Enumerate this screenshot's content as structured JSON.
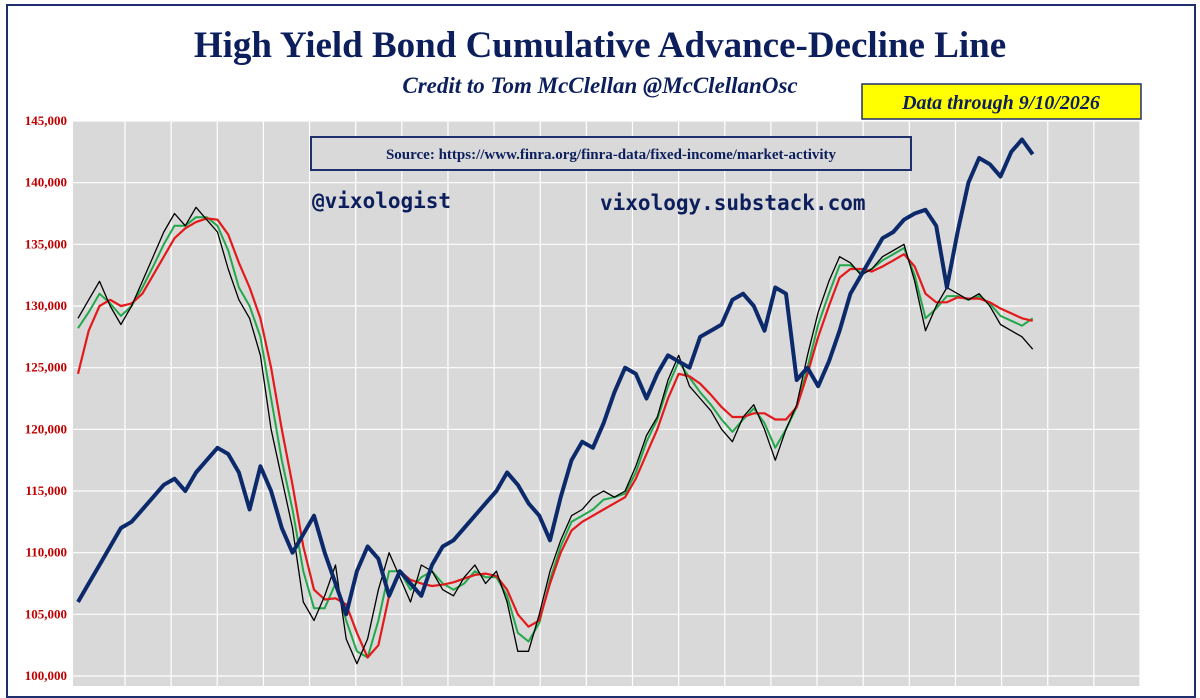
{
  "chart_data": {
    "type": "line",
    "title": "High Yield Bond Cumulative Advance-Decline Line",
    "subtitle": "Credit to Tom McClellan @McClellanOsc",
    "data_through": "Data through 9/10/2026",
    "source": "Source: https://www.finra.org/finra-data/fixed-income/market-activity",
    "handle": "@vixologist",
    "website": "vixology.substack.com",
    "y_ticks": [
      "145,000",
      "140,000",
      "135,000",
      "130,000",
      "125,000",
      "120,000",
      "115,000",
      "110,000",
      "105,000",
      "100,000"
    ],
    "ylim": [
      100000,
      145000
    ],
    "x_count": 100,
    "grid": true,
    "series": [
      {
        "color": "#0c2a6b",
        "width": 4,
        "values": [
          106000,
          107500,
          109000,
          110500,
          112000,
          112500,
          113500,
          114500,
          115500,
          116000,
          115000,
          116500,
          117500,
          118500,
          118000,
          116500,
          113500,
          117000,
          115000,
          112000,
          110000,
          111500,
          113000,
          110000,
          107500,
          105000,
          108500,
          110500,
          109500,
          106500,
          108500,
          107500,
          106500,
          109000,
          110500,
          111000,
          112000,
          113000,
          114000,
          115000,
          116500,
          115500,
          114000,
          113000,
          111000,
          114500,
          117500,
          119000,
          118500,
          120500,
          123000,
          125000,
          124500,
          122500,
          124500,
          126000,
          125500,
          125000,
          127500,
          128000,
          128500,
          130500,
          131000,
          130000,
          128000,
          131500,
          131000,
          124000,
          125000,
          123500,
          125500,
          128000,
          131000,
          132500,
          134000,
          135500,
          136000,
          137000,
          137500,
          137800,
          136500,
          131500,
          136000,
          140000,
          142000,
          141500,
          140500,
          142500,
          143500,
          142300
        ]
      },
      {
        "color": "#000000",
        "width": 1.3,
        "values": [
          129000,
          130500,
          132000,
          130000,
          128500,
          130000,
          132000,
          134000,
          136000,
          137500,
          136500,
          138000,
          137000,
          136000,
          133000,
          130500,
          129000,
          126000,
          120000,
          116000,
          112000,
          106000,
          104500,
          106500,
          109000,
          103000,
          101000,
          103000,
          107000,
          110000,
          108000,
          106000,
          109000,
          108500,
          107000,
          106500,
          108000,
          109000,
          107500,
          108500,
          106000,
          102000,
          102000,
          105000,
          108500,
          111000,
          113000,
          113500,
          114500,
          115000,
          114500,
          115000,
          117000,
          119500,
          121000,
          124000,
          126000,
          123500,
          122500,
          121500,
          120000,
          119000,
          121000,
          122000,
          120000,
          117500,
          120000,
          122000,
          126000,
          129500,
          132000,
          134000,
          133500,
          132500,
          133000,
          134000,
          134500,
          135000,
          132000,
          128000,
          130000,
          131500,
          131000,
          130500,
          131000,
          130000,
          128500,
          128000,
          127500,
          126500
        ]
      },
      {
        "color": "#22a84a",
        "width": 2,
        "values": [
          128200,
          129500,
          131000,
          130200,
          129200,
          130000,
          131500,
          133200,
          135000,
          136500,
          136500,
          137200,
          137200,
          136500,
          134500,
          131500,
          130000,
          127500,
          122500,
          117500,
          113500,
          108500,
          105500,
          105500,
          107500,
          104500,
          102000,
          101500,
          104500,
          108500,
          108500,
          107000,
          108000,
          108500,
          107500,
          107000,
          107500,
          108500,
          108000,
          108000,
          106500,
          103500,
          102800,
          104300,
          107800,
          110500,
          112500,
          113000,
          113500,
          114300,
          114500,
          114800,
          116500,
          119000,
          120800,
          123500,
          125500,
          124200,
          123000,
          122000,
          120800,
          119800,
          120800,
          121700,
          120500,
          118500,
          120000,
          121800,
          125000,
          128500,
          131000,
          133300,
          133300,
          132700,
          133000,
          133700,
          134200,
          134700,
          132500,
          129000,
          129800,
          130800,
          130800,
          130500,
          130800,
          130200,
          129200,
          128800,
          128400,
          129000
        ]
      },
      {
        "color": "#e31a1c",
        "width": 2.2,
        "values": [
          124500,
          128000,
          130000,
          130500,
          130000,
          130200,
          131000,
          132500,
          134000,
          135500,
          136300,
          136800,
          137100,
          137000,
          135800,
          133500,
          131500,
          129000,
          125000,
          120000,
          115500,
          110500,
          107000,
          106200,
          106300,
          105800,
          103500,
          101500,
          102500,
          106500,
          108500,
          107800,
          107500,
          107300,
          107400,
          107600,
          107900,
          108200,
          108300,
          108100,
          107000,
          105000,
          104000,
          104500,
          107500,
          110000,
          111800,
          112500,
          113000,
          113500,
          114000,
          114500,
          116000,
          118000,
          120000,
          122500,
          124500,
          124300,
          123700,
          122800,
          121800,
          121000,
          121000,
          121300,
          121300,
          120800,
          120800,
          121800,
          124500,
          127500,
          130000,
          132300,
          133000,
          133000,
          132800,
          133200,
          133700,
          134200,
          133200,
          131000,
          130300,
          130300,
          130700,
          130600,
          130600,
          130300,
          129800,
          129400,
          129000,
          128800
        ]
      }
    ]
  }
}
